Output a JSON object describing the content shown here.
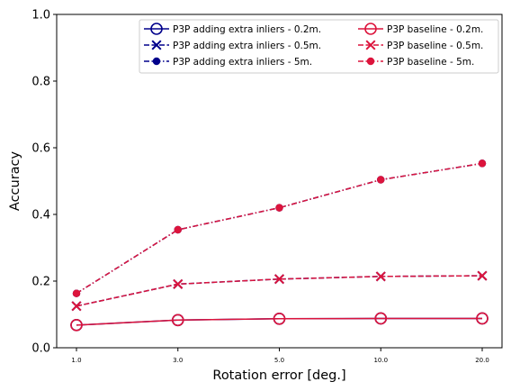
{
  "chart_data": {
    "type": "line",
    "title": "",
    "xlabel": "Rotation error [deg.]",
    "ylabel": "Accuracy",
    "categories": [
      "1.0",
      "3.0",
      "5.0",
      "10.0",
      "20.0"
    ],
    "ylim": [
      0,
      1.0
    ],
    "yticks": [
      "0.0",
      "0.2",
      "0.4",
      "0.6",
      "0.8",
      "1.0"
    ],
    "grid": false,
    "legend_position": "top-right",
    "series": [
      {
        "name": "P3P adding extra inliers - 0.2m.",
        "values": [
          0.068,
          0.083,
          0.087,
          0.088,
          0.088
        ],
        "color": "#00008b",
        "linestyle": "solid",
        "marker": "open-circle"
      },
      {
        "name": "P3P adding extra inliers - 0.5m.",
        "values": [
          0.125,
          0.191,
          0.206,
          0.214,
          0.216
        ],
        "color": "#00008b",
        "linestyle": "dashed",
        "marker": "x"
      },
      {
        "name": "P3P adding extra inliers - 5m.",
        "values": [
          0.163,
          0.354,
          0.42,
          0.504,
          0.553
        ],
        "color": "#00008b",
        "linestyle": "dashdot",
        "marker": "filled-circle"
      },
      {
        "name": "P3P baseline - 0.2m.",
        "values": [
          0.068,
          0.083,
          0.087,
          0.088,
          0.088
        ],
        "color": "#dc143c",
        "linestyle": "solid",
        "marker": "open-circle"
      },
      {
        "name": "P3P baseline - 0.5m.",
        "values": [
          0.125,
          0.191,
          0.206,
          0.214,
          0.216
        ],
        "color": "#dc143c",
        "linestyle": "dashed",
        "marker": "x"
      },
      {
        "name": "P3P baseline - 5m.",
        "values": [
          0.163,
          0.354,
          0.42,
          0.504,
          0.553
        ],
        "color": "#dc143c",
        "linestyle": "dashdot",
        "marker": "filled-circle"
      }
    ]
  }
}
